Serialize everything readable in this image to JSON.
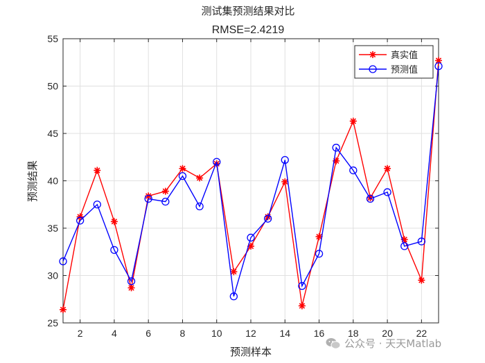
{
  "chart_data": {
    "type": "line",
    "title": "测试集预测结果对比",
    "subtitle": "RMSE=2.4219",
    "xlabel": "预测样本",
    "ylabel": "预测结果",
    "xlim": [
      1,
      23
    ],
    "ylim": [
      25,
      55
    ],
    "xticks": [
      2,
      4,
      6,
      8,
      10,
      12,
      14,
      16,
      18,
      20,
      22
    ],
    "yticks": [
      25,
      30,
      35,
      40,
      45,
      50,
      55
    ],
    "grid": true,
    "legend_position": "top-right",
    "x": [
      1,
      2,
      3,
      4,
      5,
      6,
      7,
      8,
      9,
      10,
      11,
      12,
      13,
      14,
      15,
      16,
      17,
      18,
      19,
      20,
      21,
      22,
      23
    ],
    "series": [
      {
        "name": "真实值",
        "color": "#ff0000",
        "marker": "asterisk",
        "values": [
          26.4,
          36.2,
          41.1,
          35.7,
          28.7,
          38.4,
          38.9,
          41.3,
          40.3,
          41.8,
          30.4,
          33.1,
          36.2,
          39.9,
          26.8,
          34.1,
          42.1,
          46.3,
          38.2,
          41.3,
          33.8,
          29.5,
          52.7
        ]
      },
      {
        "name": "预测值",
        "color": "#0000ff",
        "marker": "circle",
        "values": [
          31.5,
          35.8,
          37.5,
          32.7,
          29.4,
          38.1,
          37.8,
          40.5,
          37.3,
          42.0,
          27.8,
          34.0,
          36.0,
          42.2,
          28.9,
          32.3,
          43.5,
          41.1,
          38.1,
          38.8,
          33.1,
          33.6,
          52.1
        ]
      }
    ]
  },
  "watermark": {
    "text": "公众号 · 天天Matlab",
    "icon": "wechat-icon"
  }
}
